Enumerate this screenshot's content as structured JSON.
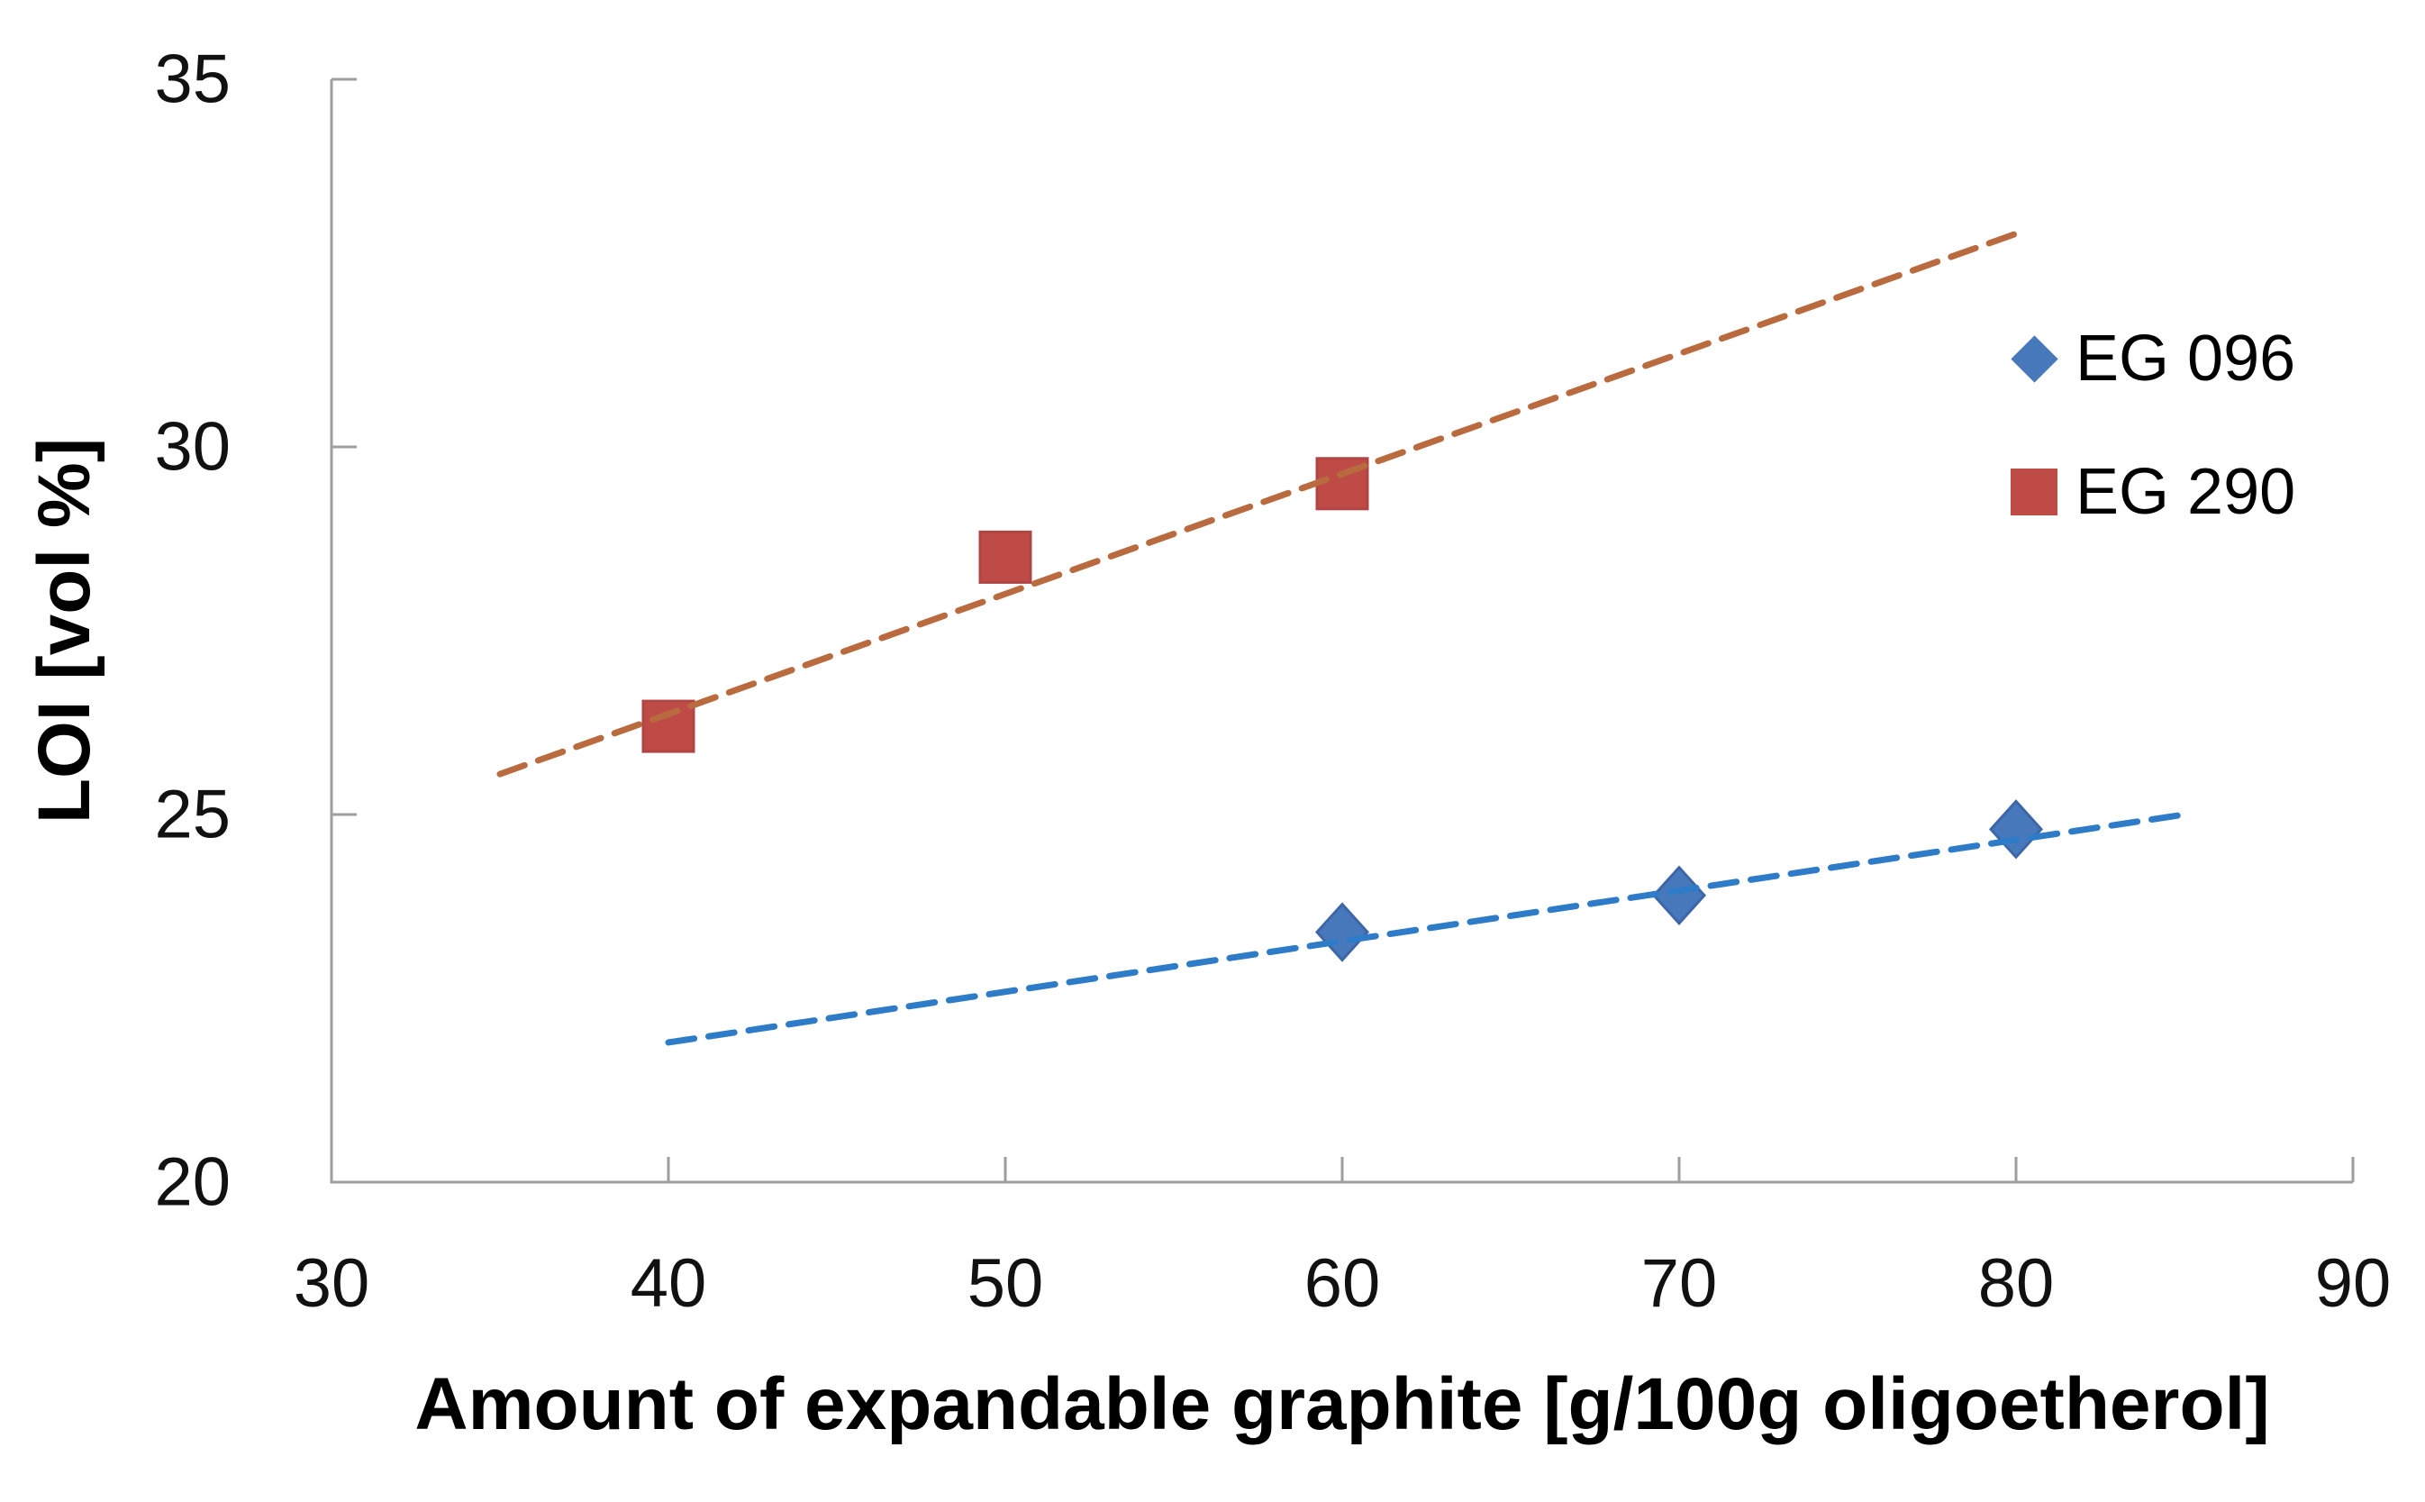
{
  "chart_data": {
    "type": "scatter",
    "title": "",
    "xlabel": "Amount of expandable graphite [g/100g oligoetherol]",
    "ylabel": "LOI [vol %]",
    "xlim": [
      30,
      90
    ],
    "ylim": [
      20,
      35
    ],
    "xticks": [
      30,
      40,
      50,
      60,
      70,
      80,
      90
    ],
    "yticks": [
      20,
      25,
      30,
      35
    ],
    "grid": false,
    "legend_position": "right-inside",
    "axis_color": "#9e9e9e",
    "text_color": "#111111",
    "series": [
      {
        "name": "EG 096",
        "marker": "diamond",
        "marker_color": "#4878BC",
        "marker_edge_color": "#3d66a6",
        "trend_color": "#2E7CC8",
        "trend_style": "dashed",
        "points": [
          [
            60,
            23.4
          ],
          [
            70,
            23.9
          ],
          [
            80,
            24.8
          ]
        ],
        "trendline": {
          "x1": 40,
          "y1": 21.9,
          "x2": 85,
          "y2": 25.0
        }
      },
      {
        "name": "EG 290",
        "marker": "square",
        "marker_color": "#BF4B47",
        "marker_edge_color": "#b04543",
        "trend_color": "#B96B3F",
        "trend_style": "dashed",
        "points": [
          [
            40,
            26.2
          ],
          [
            50,
            28.5
          ],
          [
            60,
            29.5
          ]
        ],
        "trendline": {
          "x1": 35,
          "y1": 25.55,
          "x2": 80,
          "y2": 32.9
        }
      }
    ]
  }
}
